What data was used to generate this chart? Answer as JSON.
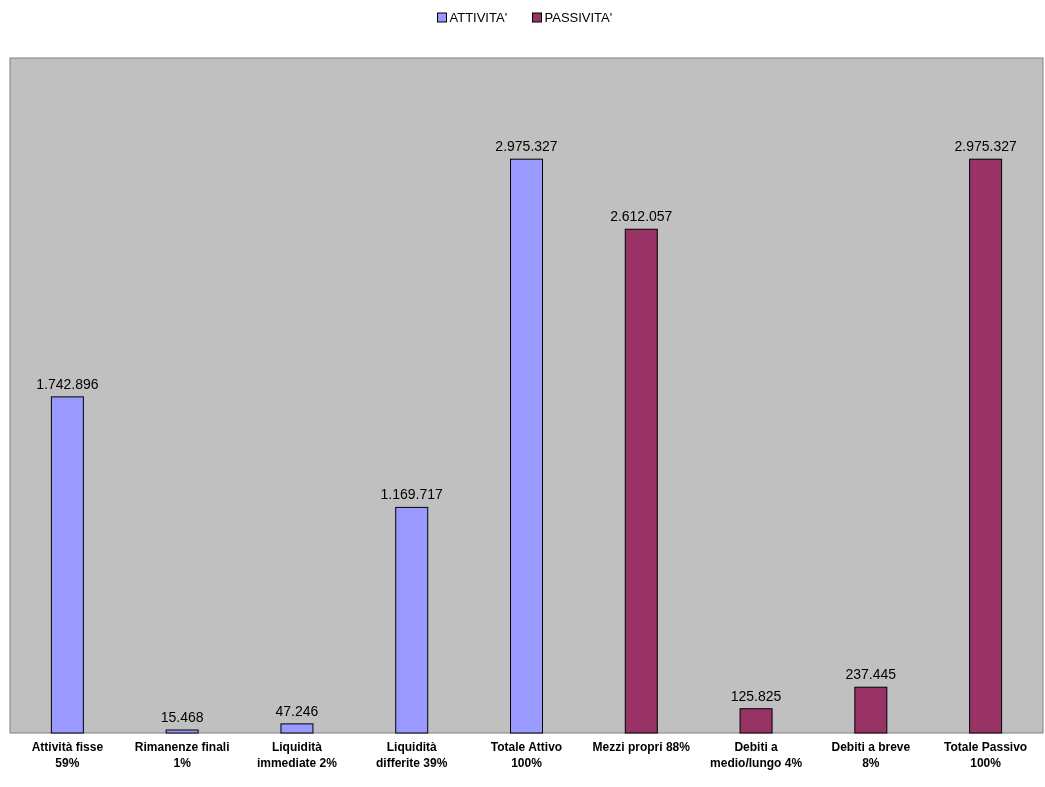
{
  "chart_data": {
    "type": "bar",
    "categories": [
      "Attività fisse 59%",
      "Rimanenze finali 1%",
      "Liquidità immediate 2%",
      "Liquidità differite 39%",
      "Totale Attivo 100%",
      "Mezzi propri 88%",
      "Debiti a medio/lungo 4%",
      "Debiti a  breve 8%",
      "Totale Passivo 100%"
    ],
    "series": [
      {
        "name": "ATTIVITA'",
        "color": "#9999ff",
        "values": [
          1742896,
          15468,
          47246,
          1169717,
          2975327,
          null,
          null,
          null,
          null
        ],
        "value_labels": [
          "1.742.896",
          "15.468",
          "47.246",
          "1.169.717",
          "2.975.327",
          null,
          null,
          null,
          null
        ]
      },
      {
        "name": "PASSIVITA'",
        "color": "#993366",
        "values": [
          null,
          null,
          null,
          null,
          null,
          2612057,
          125825,
          237445,
          2975327
        ],
        "value_labels": [
          null,
          null,
          null,
          null,
          null,
          "2.612.057",
          "125.825",
          "237.445",
          "2.975.327"
        ]
      }
    ],
    "ylim": [
      0,
      3500000
    ],
    "tick_labels": "x",
    "legend": "top"
  }
}
